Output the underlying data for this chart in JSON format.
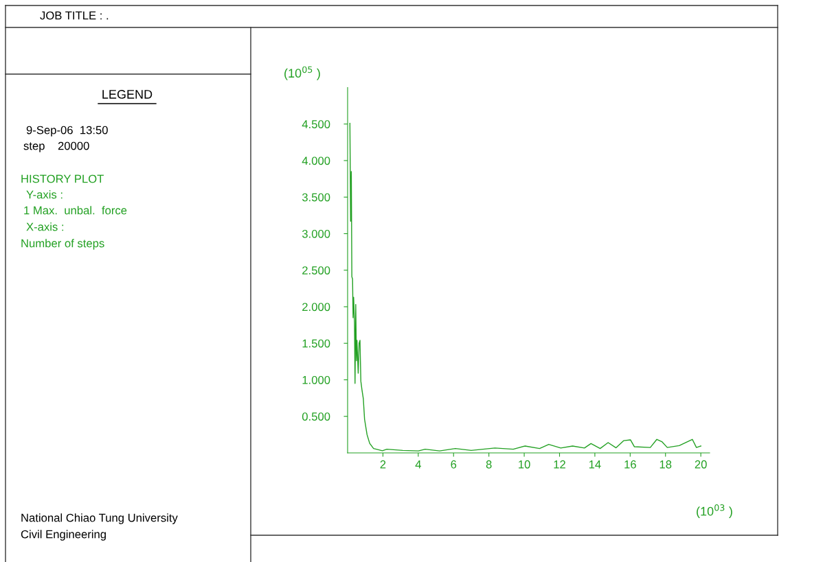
{
  "chart_data": {
    "type": "line",
    "title": "JOB TITLE : .",
    "xlabel": "(10$^{03}$ )",
    "ylabel": "(10$^{05}$ )",
    "annotations": [
      "LEGEND",
      "9-Sep-06  13:50",
      "step    20000",
      "HISTORY PLOT",
      "Y-axis :",
      "1 Max.  unbal.  force",
      "X-axis :",
      "Number of steps",
      "National Chiao Tung University",
      "Civil Engineering"
    ],
    "x": [
      0.13,
      0.17,
      0.21,
      0.24,
      0.28,
      0.31,
      0.34,
      0.39,
      0.42,
      0.46,
      0.5,
      0.53,
      0.6,
      0.65,
      0.7,
      0.75,
      0.82,
      0.89,
      0.96,
      1.1,
      1.25,
      1.47,
      1.97,
      2.22,
      3.12,
      4.01,
      4.39,
      5.21,
      6.1,
      7.0,
      8.34,
      9.38,
      10.05,
      10.87,
      11.39,
      12.07,
      12.74,
      13.41,
      13.78,
      14.3,
      14.75,
      15.2,
      15.64,
      16.02,
      16.24,
      17.14,
      17.51,
      17.81,
      18.1,
      18.78,
      19.52,
      19.75,
      20.0
    ],
    "series": [
      {
        "color": "#22a022",
        "values": [
          4.51,
          3.17,
          3.85,
          2.41,
          2.38,
          1.85,
          2.13,
          1.78,
          0.95,
          2.03,
          1.26,
          1.54,
          1.09,
          1.5,
          1.54,
          0.98,
          0.85,
          0.74,
          0.46,
          0.25,
          0.13,
          0.06,
          0.03,
          0.05,
          0.034,
          0.027,
          0.05,
          0.027,
          0.06,
          0.034,
          0.067,
          0.05,
          0.094,
          0.06,
          0.117,
          0.067,
          0.094,
          0.067,
          0.128,
          0.06,
          0.141,
          0.07,
          0.168,
          0.178,
          0.084,
          0.074,
          0.185,
          0.151,
          0.074,
          0.1,
          0.185,
          0.074,
          0.094
        ]
      }
    ],
    "xlim": [
      0,
      20.5
    ],
    "ylim": [
      0,
      5.0
    ],
    "xticks": [
      2,
      4,
      6,
      8,
      10,
      12,
      14,
      16,
      18,
      20
    ],
    "yticks": [
      {
        "value": 0.5,
        "label": "0.500"
      },
      {
        "value": 1.0,
        "label": "1.000"
      },
      {
        "value": 1.5,
        "label": "1.500"
      },
      {
        "value": 2.0,
        "label": "2.000"
      },
      {
        "value": 2.5,
        "label": "2.500"
      },
      {
        "value": 3.0,
        "label": "3.000"
      },
      {
        "value": 3.5,
        "label": "3.500"
      },
      {
        "value": 4.0,
        "label": "4.000"
      },
      {
        "value": 4.5,
        "label": "4.500"
      }
    ],
    "grid": false,
    "legend": false
  }
}
